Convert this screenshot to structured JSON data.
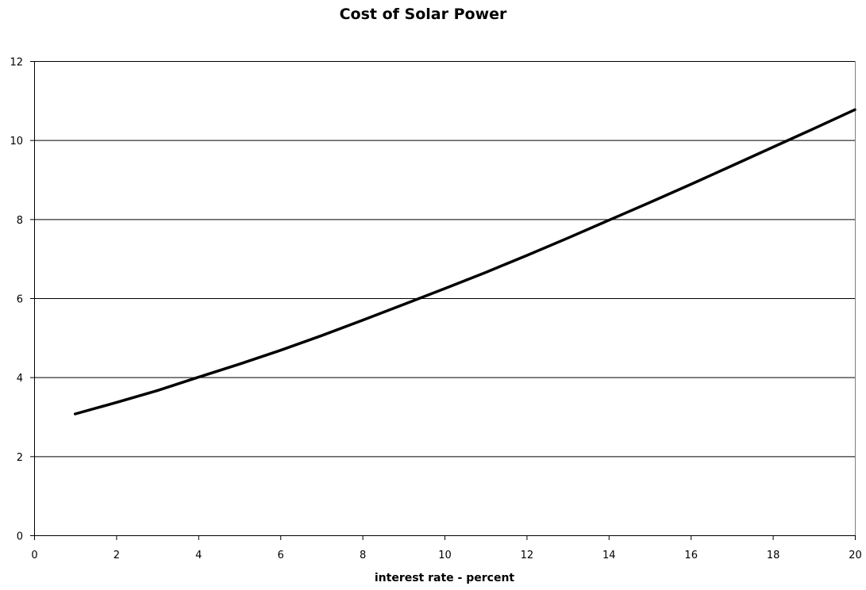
{
  "chart_data": {
    "type": "line",
    "title": "Cost of Solar Power",
    "xlabel": "interest rate - percent",
    "ylabel": "",
    "xlim": [
      0,
      20
    ],
    "ylim": [
      0,
      12
    ],
    "x_ticks": [
      0,
      2,
      4,
      6,
      8,
      10,
      12,
      14,
      16,
      18,
      20
    ],
    "y_ticks": [
      0,
      2,
      4,
      6,
      8,
      10,
      12
    ],
    "grid": "horizontal",
    "legend": "none",
    "series": [
      {
        "color": "#000000",
        "x": [
          1,
          2,
          3,
          4,
          5,
          6,
          7,
          8,
          9,
          10,
          11,
          12,
          13,
          14,
          15,
          16,
          17,
          18,
          19,
          20
        ],
        "values": [
          3.07,
          3.36,
          3.66,
          4.0,
          4.33,
          4.68,
          5.05,
          5.44,
          5.84,
          6.24,
          6.65,
          7.08,
          7.52,
          7.97,
          8.42,
          8.88,
          9.35,
          9.82,
          10.29,
          10.77
        ]
      }
    ]
  }
}
